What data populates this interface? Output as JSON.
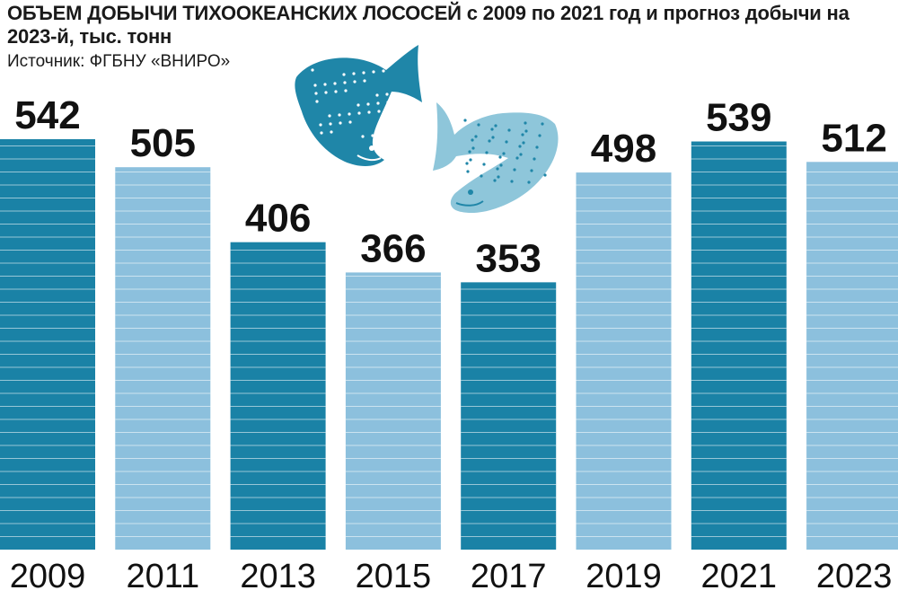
{
  "chart_data": {
    "type": "bar",
    "title": "ОБЪЕМ ДОБЫЧИ ТИХООКЕАНСКИХ ЛОСОСЕЙ с 2009 по 2021 год и прогноз добычи на 2023-й, тыс. тонн",
    "source": "Источник: ФГБНУ «ВНИРО»",
    "categories": [
      "2009",
      "2011",
      "2013",
      "2015",
      "2017",
      "2019",
      "2021",
      "2023"
    ],
    "values": [
      542,
      505,
      406,
      366,
      353,
      498,
      539,
      512
    ],
    "data_labels": [
      "542",
      "505",
      "406",
      "366",
      "353",
      "498",
      "539",
      "512"
    ],
    "ylim": [
      0,
      542
    ],
    "grid": false,
    "xlabel": "",
    "ylabel": "",
    "colors": {
      "dark": "#1a82a6",
      "light": "#8cc0dd",
      "fish_dark": "#1f86a8",
      "fish_light": "#8ec6da"
    },
    "bar_shades": [
      "dark",
      "light",
      "dark",
      "light",
      "dark",
      "light",
      "dark",
      "light"
    ]
  },
  "icons": [
    "salmon-dark-icon",
    "salmon-light-icon"
  ]
}
